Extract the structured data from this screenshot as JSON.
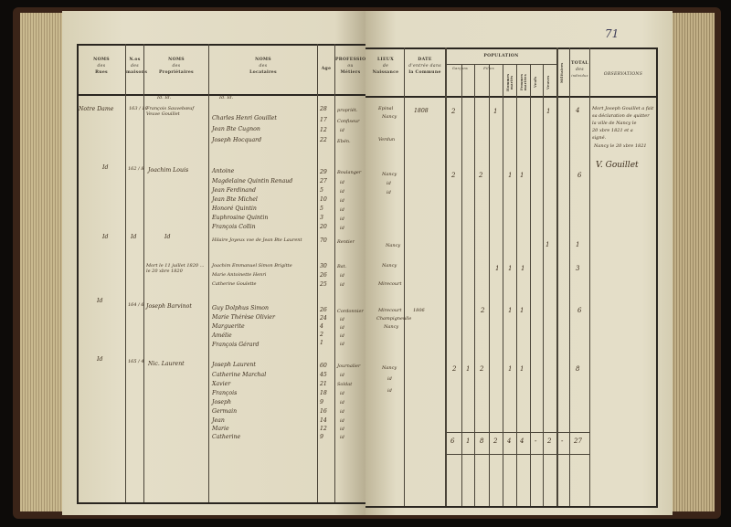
{
  "page_number": "71",
  "left_page": {
    "headers": [
      {
        "title": "NOMS",
        "sub": "des",
        "label": "Rues"
      },
      {
        "title": "N.os",
        "sub": "des",
        "label": "maisons"
      },
      {
        "title": "NOMS",
        "sub": "des",
        "label": "Propriétaires"
      },
      {
        "title": "NOMS",
        "sub": "des",
        "label": "Locataires"
      },
      {
        "title": "",
        "sub": "",
        "label": "Age"
      },
      {
        "title": "PROFESSIONS",
        "sub": "ou",
        "label": "Métiers"
      }
    ],
    "column_marks": {
      "proprietaires": "Id. Id.",
      "locataires": "Id. Id."
    },
    "households": [
      {
        "rue": "Notre Dame",
        "maison": "163 / 10",
        "proprietaire": "François Sauvebœuf Veuve Gouillet",
        "locataires": [
          "Charles Henri Gouillet",
          "Jean Bte Cugnon",
          "Joseph Hocquard"
        ],
        "ages": [
          "28",
          "17",
          "12",
          "22"
        ],
        "professions": [
          "propriét.",
          "Confiseur",
          "id",
          "Ebén."
        ]
      },
      {
        "rue": "Id",
        "maison": "162 / 8",
        "proprietaire": "Joachim Louis",
        "locataires": [
          "Antoine",
          "Magdelaine Quintin Renaud",
          "Jean Ferdinand",
          "Jean Bte Michel",
          "Honoré Quintin",
          "Euphrosine Quintin",
          "François Collin"
        ],
        "ages": [
          "29",
          "27",
          "5",
          "10",
          "5",
          "3",
          "20"
        ],
        "professions": [
          "Boulanger",
          "id",
          "id",
          "id",
          "id",
          "id",
          "id"
        ]
      },
      {
        "rue": "Id",
        "maison": "Id",
        "proprietaire": "Id",
        "locataires": [
          "Hilaire Joyeux vve de Jean Bte Laurent"
        ],
        "ages": [
          "70"
        ],
        "professions": [
          "Rentier"
        ]
      },
      {
        "rue": "",
        "maison": "",
        "proprietaire": "Mort le 11 juillet 1820 ... le 20 xbre 1820",
        "locataires": [
          "Joachim Emmanuel Simon Brigitte",
          "Marie Antoinette Henri",
          "Catherine Goulette"
        ],
        "ages": [
          "30",
          "26",
          "25"
        ],
        "professions": [
          "Bat.",
          "id",
          "id"
        ]
      },
      {
        "rue": "Id",
        "maison": "164 / 6",
        "proprietaire": "Joseph Barvinot",
        "locataires": [
          "Guy Dolphus Simon",
          "Marie Thérèse Olivier",
          "Marguerite",
          "Amélie",
          "François Gérard"
        ],
        "ages": [
          "26",
          "24",
          "4",
          "2",
          "1"
        ],
        "professions": [
          "Cordonnier",
          "id",
          "id",
          "id",
          "id"
        ]
      },
      {
        "rue": "Id",
        "maison": "165 / 4",
        "proprietaire": "Nic. Laurent",
        "locataires": [
          "Joseph Laurent",
          "Catherine Marchal",
          "Xavier",
          "François",
          "Joseph",
          "Germain",
          "Jean",
          "Marie",
          "Catherine"
        ],
        "ages": [
          "60",
          "45",
          "21",
          "18",
          "9",
          "16",
          "14",
          "12",
          "9"
        ],
        "professions": [
          "Journalier",
          "id",
          "Soldat",
          "id",
          "id",
          "id",
          "id",
          "id",
          "id"
        ]
      }
    ]
  },
  "right_page": {
    "headers": {
      "lieux": {
        "title": "LIEUX",
        "sub": "de",
        "label": "Naissance"
      },
      "date": {
        "title": "DATE",
        "sub": "d'entrée dans",
        "label": "la Commune"
      },
      "population": "POPULATION",
      "population_columns": [
        "Garçons",
        "Filles",
        "Hommes mariés",
        "Femmes mariées",
        "Veufs",
        "Veuves"
      ],
      "militaires": "Militaires",
      "total": {
        "title": "TOTAL",
        "sub": "des",
        "label": "individus"
      },
      "observations": "OBSERVATIONS"
    },
    "households": [
      {
        "lieux": [
          "Epinal",
          "Nancy",
          "Verdun"
        ],
        "date": "1808",
        "population": [
          "2",
          "",
          "1",
          "",
          "",
          "1"
        ],
        "militaires": "",
        "total": "4",
        "observations": [
          "Mort Joseph Gouillet a fait",
          "sa déclaration de quitter",
          "la ville de Nancy le",
          "20 xbre 1821 et a",
          "signé.",
          "Nancy le 20 xbre 1821"
        ],
        "signature": "V. Gouillet"
      },
      {
        "lieux": [
          "Nancy",
          "id",
          "id"
        ],
        "date": "",
        "population": [
          "2",
          "2",
          "1",
          "1",
          "",
          ""
        ],
        "militaires": "",
        "total": "6",
        "observations": []
      },
      {
        "lieux": [
          "Nancy"
        ],
        "date": "",
        "population": [
          "",
          "",
          "",
          "",
          "",
          "1"
        ],
        "militaires": "",
        "total": "1",
        "observations": []
      },
      {
        "lieux": [
          "Nancy",
          "Mirecourt"
        ],
        "date": "",
        "population": [
          "",
          "",
          "1",
          "1",
          "1",
          ""
        ],
        "militaires": "",
        "total": "3",
        "observations": []
      },
      {
        "lieux": [
          "Mirecourt",
          "Champigneulle",
          "Nancy"
        ],
        "date": "1806",
        "population": [
          "",
          "2",
          "1",
          "1",
          "",
          ""
        ],
        "militaires": "",
        "total": "6",
        "observations": []
      },
      {
        "lieux": [
          "Nancy",
          "id",
          "id"
        ],
        "date": "",
        "population": [
          "2",
          "1",
          "2",
          "",
          "1",
          "1"
        ],
        "militaires": "",
        "total": "8",
        "observations": []
      }
    ],
    "totals": [
      "6",
      "1",
      "8",
      "2",
      "4",
      "4",
      "-",
      "2",
      "-",
      "27"
    ]
  },
  "colors": {
    "paper": "#e2dcc4",
    "ink": "#3b2c1c",
    "rule": "#2a2620",
    "background": "#0d0b09"
  }
}
